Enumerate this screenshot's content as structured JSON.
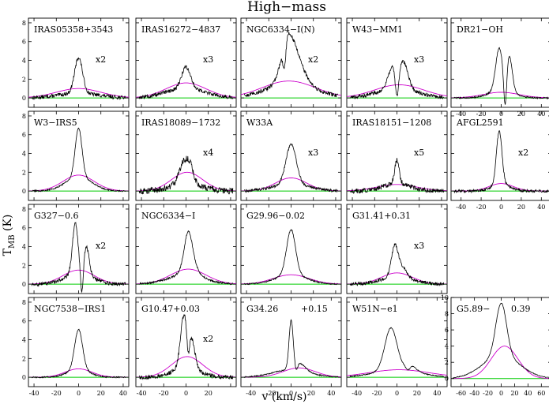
{
  "figure": {
    "title": "High−mass",
    "xlabel": "v  (km/s)",
    "ylabel_main": "T",
    "ylabel_sub": "MB",
    "ylabel_unit": " (K)"
  },
  "colors": {
    "spectrum": "#000000",
    "gaussian_fit": "#cc00cc",
    "baseline": "#00cc00",
    "frame": "#000000"
  },
  "chart_data": [
    {
      "type": "line",
      "row": 0,
      "col": 0,
      "label": "IRAS05358+3543",
      "scale": "x2",
      "xlim": [
        -45,
        45
      ],
      "ylim": [
        -1,
        8.5
      ],
      "peaks": [
        [
          0,
          3.8,
          3.5
        ],
        [
          0,
          0.5,
          18
        ]
      ],
      "fit": [
        1.0,
        0,
        20
      ],
      "dip": null,
      "noise": 0.2,
      "yticks": [
        0,
        2,
        4,
        6,
        8
      ],
      "xticks": [],
      "has_yticklabels": true
    },
    {
      "type": "line",
      "row": 0,
      "col": 1,
      "label": "IRAS16272−4837",
      "scale": "x3",
      "xlim": [
        -45,
        45
      ],
      "ylim": [
        -1,
        8.5
      ],
      "peaks": [
        [
          0,
          2.3,
          4
        ],
        [
          0,
          1.0,
          18
        ]
      ],
      "fit": [
        1.6,
        0,
        18
      ],
      "dip": null,
      "noise": 0.2,
      "yticks": [
        0,
        2,
        4,
        6,
        8
      ],
      "xticks": [],
      "has_yticklabels": false
    },
    {
      "type": "line",
      "row": 0,
      "col": 2,
      "label": "NGC6334−I(N)",
      "scale": "x2",
      "xlim": [
        -45,
        45
      ],
      "ylim": [
        -1,
        8.5
      ],
      "peaks": [
        [
          -4,
          2.5,
          5
        ],
        [
          2,
          3.5,
          8
        ],
        [
          0,
          1.5,
          22
        ]
      ],
      "fit": [
        1.8,
        -2,
        24
      ],
      "dip": [
        -6,
        2.6,
        1.4
      ],
      "noise": 0.2,
      "yticks": [
        0,
        2,
        4,
        6,
        8
      ],
      "xticks": [],
      "has_yticklabels": false
    },
    {
      "type": "line",
      "row": 0,
      "col": 3,
      "label": "W43−MM1",
      "scale": "x3",
      "xlim": [
        -45,
        45
      ],
      "ylim": [
        -1,
        8.5
      ],
      "peaks": [
        [
          -4,
          2.3,
          4
        ],
        [
          6,
          2.8,
          4
        ],
        [
          0,
          1.0,
          18
        ]
      ],
      "fit": [
        1.4,
        2,
        22
      ],
      "dip": [
        0,
        3.0,
        1.6
      ],
      "noise": 0.2,
      "yticks": [
        0,
        2,
        4,
        6,
        8
      ],
      "xticks": [],
      "has_yticklabels": false
    },
    {
      "type": "line",
      "row": 0,
      "col": 4,
      "label": "DR21−OH",
      "scale": "",
      "xlim": [
        -50,
        50
      ],
      "ylim": [
        -1,
        8.5
      ],
      "peaks": [
        [
          -2,
          4.5,
          3.5
        ],
        [
          8,
          3.8,
          3
        ],
        [
          0,
          0.8,
          12
        ]
      ],
      "fit": [
        0.6,
        0,
        18
      ],
      "dip": [
        4,
        4.0,
        1.5
      ],
      "noise": 0.08,
      "yticks": [
        0,
        2,
        4,
        6,
        8
      ],
      "xticks": [
        -40,
        -20,
        0,
        20,
        40
      ],
      "has_yticklabels": false
    },
    {
      "type": "line",
      "row": 1,
      "col": 0,
      "label": "W3−IRS5",
      "scale": "",
      "xlim": [
        -45,
        45
      ],
      "ylim": [
        -1,
        8.5
      ],
      "peaks": [
        [
          0,
          5.2,
          3
        ],
        [
          0,
          1.5,
          12
        ]
      ],
      "fit": [
        1.7,
        0,
        14
      ],
      "dip": null,
      "noise": 0.08,
      "yticks": [
        0,
        2,
        4,
        6,
        8
      ],
      "xticks": [],
      "has_yticklabels": true
    },
    {
      "type": "line",
      "row": 1,
      "col": 1,
      "label": "IRAS18089−1732",
      "scale": "x4",
      "xlim": [
        -45,
        45
      ],
      "ylim": [
        -1,
        8.5
      ],
      "peaks": [
        [
          -2,
          2.3,
          4
        ],
        [
          4,
          1.5,
          3
        ],
        [
          0,
          0.8,
          14
        ]
      ],
      "fit": [
        2.0,
        1,
        14
      ],
      "dip": null,
      "noise": 0.35,
      "yticks": [
        0,
        2,
        4,
        6,
        8
      ],
      "xticks": [],
      "has_yticklabels": false
    },
    {
      "type": "line",
      "row": 1,
      "col": 2,
      "label": "W33A",
      "scale": "x3",
      "xlim": [
        -45,
        45
      ],
      "ylim": [
        -1,
        8.5
      ],
      "peaks": [
        [
          0,
          4.2,
          4.5
        ],
        [
          0,
          0.8,
          16
        ]
      ],
      "fit": [
        1.4,
        0,
        14
      ],
      "dip": null,
      "noise": 0.15,
      "yticks": [
        0,
        2,
        4,
        6,
        8
      ],
      "xticks": [],
      "has_yticklabels": false
    },
    {
      "type": "line",
      "row": 1,
      "col": 3,
      "label": "IRAS18151−1208",
      "scale": "x5",
      "xlim": [
        -45,
        45
      ],
      "ylim": [
        -1,
        8.5
      ],
      "peaks": [
        [
          0,
          2.5,
          2
        ],
        [
          0,
          0.8,
          12
        ]
      ],
      "fit": [
        0.7,
        0,
        18
      ],
      "dip": null,
      "noise": 0.25,
      "yticks": [
        0,
        2,
        4,
        6,
        8
      ],
      "xticks": [],
      "has_yticklabels": false
    },
    {
      "type": "line",
      "row": 1,
      "col": 4,
      "label": "AFGL2591",
      "scale": "x2",
      "xlim": [
        -50,
        50
      ],
      "ylim": [
        -1,
        8.5
      ],
      "peaks": [
        [
          -2,
          5.8,
          2.8
        ],
        [
          0,
          0.6,
          10
        ]
      ],
      "fit": [
        0.8,
        0,
        12
      ],
      "dip": null,
      "noise": 0.15,
      "yticks": [
        0,
        2,
        4,
        6,
        8
      ],
      "xticks": [
        -40,
        -20,
        0,
        20,
        40
      ],
      "has_yticklabels": false
    },
    {
      "type": "line",
      "row": 2,
      "col": 0,
      "label": "G327−0.6",
      "scale": "x2",
      "xlim": [
        -45,
        45
      ],
      "ylim": [
        -1,
        8.5
      ],
      "peaks": [
        [
          -3,
          5.3,
          2.5
        ],
        [
          7,
          3.0,
          2.5
        ],
        [
          0,
          1.2,
          12
        ]
      ],
      "fit": [
        1.5,
        0,
        14
      ],
      "dip": [
        3,
        3.0,
        1.2
      ],
      "noise": 0.2,
      "yticks": [
        0,
        2,
        4,
        6,
        8
      ],
      "xticks": [],
      "has_yticklabels": true
    },
    {
      "type": "line",
      "row": 2,
      "col": 1,
      "label": "NGC6334−I",
      "scale": "",
      "xlim": [
        -45,
        45
      ],
      "ylim": [
        -1,
        8.5
      ],
      "peaks": [
        [
          2,
          3.5,
          3.5
        ],
        [
          4,
          1.2,
          6
        ],
        [
          0,
          1.0,
          16
        ]
      ],
      "fit": [
        1.6,
        2,
        16
      ],
      "dip": null,
      "noise": 0.1,
      "yticks": [
        0,
        2,
        4,
        6,
        8
      ],
      "xticks": [],
      "has_yticklabels": false
    },
    {
      "type": "line",
      "row": 2,
      "col": 2,
      "label": "G29.96−0.02",
      "scale": "",
      "xlim": [
        -45,
        45
      ],
      "ylim": [
        -1,
        8.5
      ],
      "peaks": [
        [
          0,
          4.8,
          4
        ],
        [
          0,
          1.0,
          14
        ]
      ],
      "fit": [
        1.0,
        0,
        16
      ],
      "dip": null,
      "noise": 0.07,
      "yticks": [
        0,
        2,
        4,
        6,
        8
      ],
      "xticks": [],
      "has_yticklabels": false
    },
    {
      "type": "line",
      "row": 2,
      "col": 3,
      "label": "G31.41+0.31",
      "scale": "x3",
      "xlim": [
        -45,
        45
      ],
      "ylim": [
        -1,
        8.5
      ],
      "peaks": [
        [
          -2,
          3.2,
          3
        ],
        [
          5,
          1.0,
          4
        ],
        [
          0,
          0.8,
          14
        ]
      ],
      "fit": [
        1.2,
        0,
        14
      ],
      "dip": null,
      "noise": 0.18,
      "yticks": [
        0,
        2,
        4,
        6,
        8
      ],
      "xticks": [],
      "has_yticklabels": false
    },
    {
      "type": "line",
      "row": 3,
      "col": 0,
      "label": "NGC7538−IRS1",
      "scale": "",
      "xlim": [
        -45,
        45
      ],
      "ylim": [
        -1,
        8.5
      ],
      "peaks": [
        [
          0,
          4.3,
          3.5
        ],
        [
          0,
          0.8,
          10
        ]
      ],
      "fit": [
        0.9,
        0,
        12
      ],
      "dip": null,
      "noise": 0.07,
      "yticks": [
        0,
        2,
        4,
        6,
        8
      ],
      "xticks": [
        -40,
        -20,
        0,
        20,
        40
      ],
      "has_yticklabels": true
    },
    {
      "type": "line",
      "row": 3,
      "col": 1,
      "label": "G10.47+0.03",
      "scale": "x2",
      "xlim": [
        -45,
        45
      ],
      "ylim": [
        -1,
        8.5
      ],
      "peaks": [
        [
          -2,
          5.5,
          3
        ],
        [
          5,
          3.0,
          3
        ],
        [
          0,
          1.0,
          12
        ]
      ],
      "fit": [
        2.2,
        1,
        14
      ],
      "dip": [
        2,
        2.5,
        1.2
      ],
      "noise": 0.22,
      "yticks": [
        0,
        2,
        4,
        6,
        8
      ],
      "xticks": [
        -40,
        -20,
        0,
        20
      ],
      "has_yticklabels": false
    },
    {
      "type": "line",
      "row": 3,
      "col": 2,
      "label": "G34.26",
      "label2": "+0.15",
      "scale": "",
      "xlim": [
        -50,
        50
      ],
      "ylim": [
        -1,
        8.5
      ],
      "peaks": [
        [
          0,
          5.0,
          2
        ],
        [
          8,
          0.8,
          6
        ],
        [
          0,
          0.8,
          18
        ]
      ],
      "fit": [
        1.0,
        8,
        16
      ],
      "dip": [
        5,
        0.8,
        1.5
      ],
      "noise": 0.06,
      "yticks": [
        0,
        2,
        4,
        6,
        8
      ],
      "xticks": [
        -40,
        -20,
        0,
        20,
        40
      ],
      "has_yticklabels": false
    },
    {
      "type": "line",
      "row": 3,
      "col": 3,
      "label": "W51N−e1",
      "scale": "",
      "xlim": [
        -50,
        50
      ],
      "ylim": [
        -1,
        8.5
      ],
      "peaks": [
        [
          -6,
          4.5,
          6
        ],
        [
          14,
          0.6,
          5
        ],
        [
          0,
          0.8,
          22
        ]
      ],
      "fit": [
        0.8,
        2,
        30
      ],
      "dip": [
        11,
        0.5,
        2
      ],
      "noise": 0.05,
      "yticks": [
        0,
        2,
        4,
        6,
        8
      ],
      "xticks": [
        -40,
        -20,
        0,
        20,
        40
      ],
      "has_yticklabels": false
    },
    {
      "type": "line",
      "row": 3,
      "col": 4,
      "label": "G5.89−",
      "label2": "0.39",
      "scale": "",
      "xlim": [
        -75,
        75
      ],
      "ylim": [
        -1,
        10
      ],
      "peaks": [
        [
          0,
          6.5,
          8
        ],
        [
          0,
          2.8,
          28
        ]
      ],
      "fit": [
        4.0,
        5,
        20
      ],
      "dip": null,
      "noise": 0.05,
      "yticks": [
        0,
        2,
        4,
        6,
        8,
        10
      ],
      "xticks": [
        -60,
        -40,
        -20,
        0,
        20,
        40,
        60
      ],
      "has_yticklabels": true
    }
  ]
}
